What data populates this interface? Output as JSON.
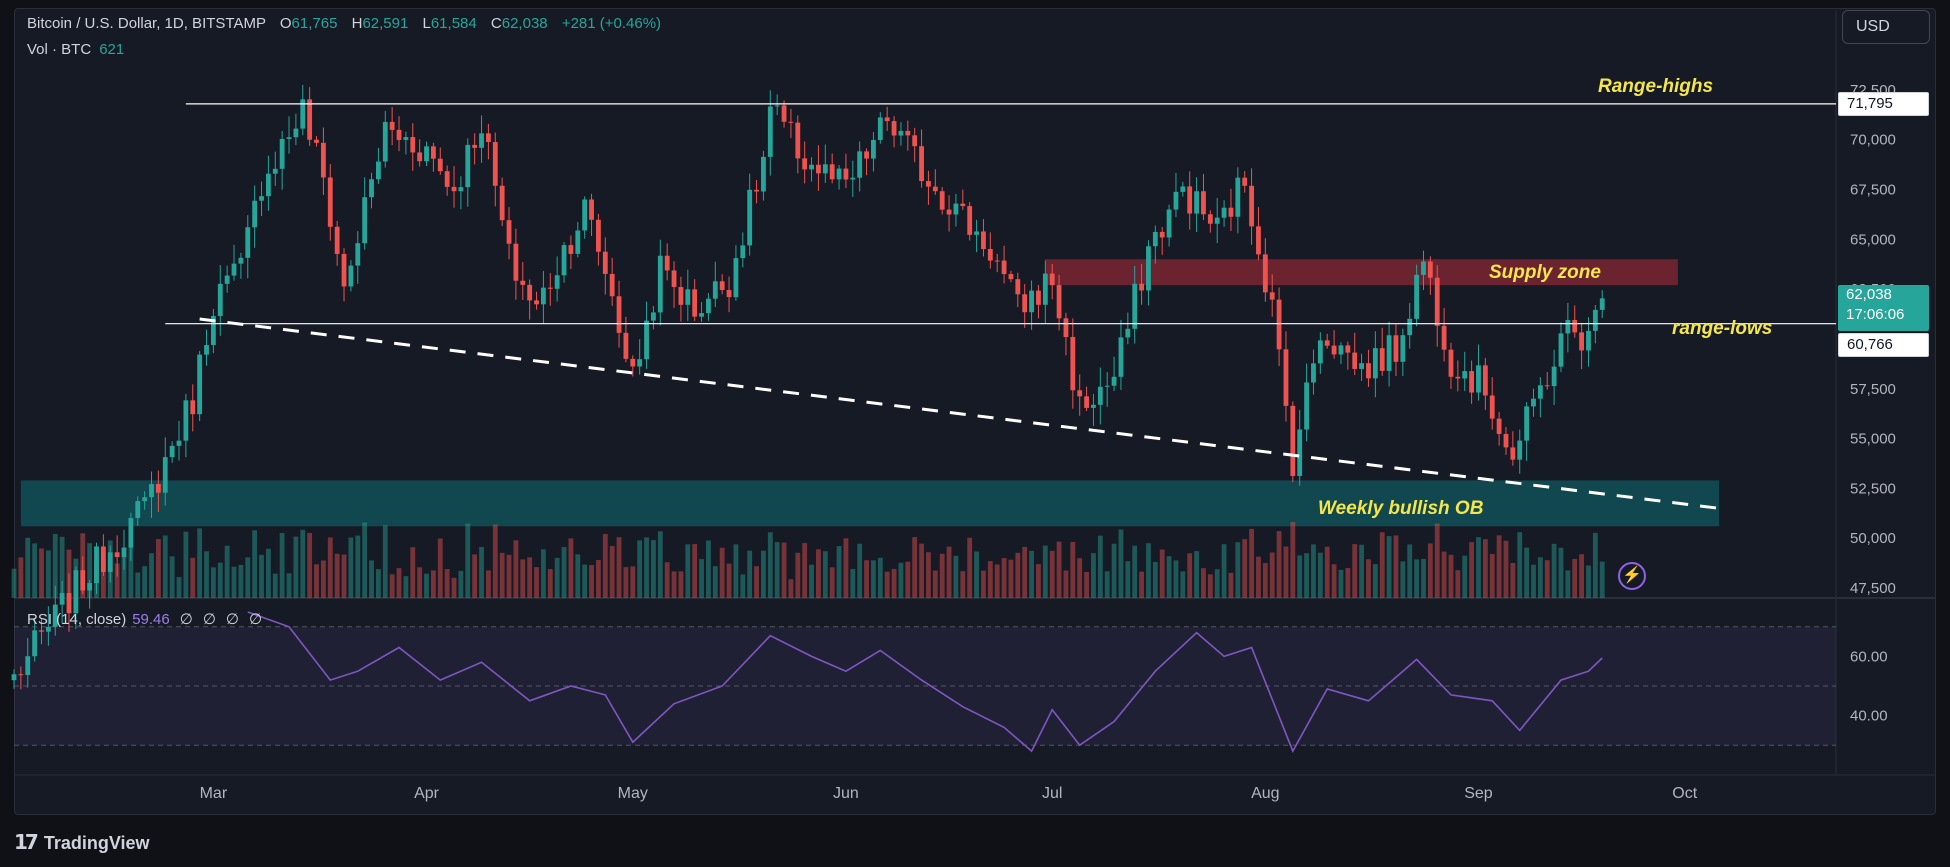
{
  "header": {
    "symbol": "Bitcoin / U.S. Dollar, 1D, BITSTAMP",
    "o_key": "O",
    "o_val": "61,765",
    "h_key": "H",
    "h_val": "62,591",
    "l_key": "L",
    "l_val": "61,584",
    "c_key": "C",
    "c_val": "62,038",
    "change": "+281 (+0.46%)"
  },
  "volume_label": {
    "name": "Vol · BTC",
    "value": "621"
  },
  "rsi_label": {
    "name": "RSI (14, close)",
    "value": "59.46",
    "extras": [
      "∅",
      "∅",
      "∅",
      "∅"
    ]
  },
  "currency_button": "USD",
  "brand": {
    "logo": "17",
    "name": "TradingView"
  },
  "colors": {
    "up": "#26a69a",
    "down": "#ef5350",
    "background": "#161a25",
    "rsi_line": "#7e57c2",
    "annotation": "#f5e64a"
  },
  "price_tags": {
    "range_high": "71,795",
    "current_price": "62,038",
    "countdown": "17:06:06",
    "range_low": "60,766"
  },
  "annotations": {
    "range_highs": "Range-highs",
    "supply_zone": "Supply zone",
    "range_lows": "range-lows",
    "weekly_ob": "Weekly bullish OB"
  },
  "chart_data": {
    "type": "candlestick",
    "symbol": "BTCUSD",
    "exchange": "BITSTAMP",
    "interval": "1D",
    "x_tick_labels": [
      "Mar",
      "Apr",
      "May",
      "Jun",
      "Jul",
      "Aug",
      "Sep",
      "Oct"
    ],
    "x_tick_dates": [
      "2024-03-01",
      "2024-04-01",
      "2024-05-01",
      "2024-06-01",
      "2024-07-01",
      "2024-08-01",
      "2024-09-01",
      "2024-10-01"
    ],
    "x_range": [
      "2024-02-01",
      "2024-10-23"
    ],
    "y_ticks": [
      47500,
      50000,
      52500,
      55000,
      57500,
      60000,
      62500,
      65000,
      67500,
      70000,
      72500
    ],
    "y_tick_labels": [
      "47,500",
      "50,000",
      "52,500",
      "55,000",
      "57,500",
      "60,000",
      "62,500",
      "65,000",
      "67,500",
      "70,000",
      "72,500"
    ],
    "y_range": [
      47000,
      74500
    ],
    "price_path": [
      {
        "date": "2024-02-01",
        "close": 43000
      },
      {
        "date": "2024-02-10",
        "close": 47500
      },
      {
        "date": "2024-02-20",
        "close": 51500
      },
      {
        "date": "2024-02-27",
        "close": 57000
      },
      {
        "date": "2024-03-01",
        "close": 62000
      },
      {
        "date": "2024-03-05",
        "close": 63500
      },
      {
        "date": "2024-03-08",
        "close": 68000
      },
      {
        "date": "2024-03-14",
        "close": 71500
      },
      {
        "date": "2024-03-17",
        "close": 68000
      },
      {
        "date": "2024-03-20",
        "close": 62500
      },
      {
        "date": "2024-03-26",
        "close": 70500
      },
      {
        "date": "2024-04-01",
        "close": 69500
      },
      {
        "date": "2024-04-05",
        "close": 67500
      },
      {
        "date": "2024-04-09",
        "close": 71000
      },
      {
        "date": "2024-04-13",
        "close": 64000
      },
      {
        "date": "2024-04-17",
        "close": 61500
      },
      {
        "date": "2024-04-21",
        "close": 64500
      },
      {
        "date": "2024-04-24",
        "close": 66500
      },
      {
        "date": "2024-04-27",
        "close": 63500
      },
      {
        "date": "2024-05-01",
        "close": 58000
      },
      {
        "date": "2024-05-05",
        "close": 63500
      },
      {
        "date": "2024-05-10",
        "close": 61500
      },
      {
        "date": "2024-05-15",
        "close": 63000
      },
      {
        "date": "2024-05-20",
        "close": 69000
      },
      {
        "date": "2024-05-21",
        "close": 71500
      },
      {
        "date": "2024-05-26",
        "close": 69000
      },
      {
        "date": "2024-06-01",
        "close": 67500
      },
      {
        "date": "2024-06-07",
        "close": 71000
      },
      {
        "date": "2024-06-12",
        "close": 68500
      },
      {
        "date": "2024-06-17",
        "close": 66500
      },
      {
        "date": "2024-06-22",
        "close": 64500
      },
      {
        "date": "2024-06-26",
        "close": 61500
      },
      {
        "date": "2024-07-01",
        "close": 63000
      },
      {
        "date": "2024-07-05",
        "close": 56500
      },
      {
        "date": "2024-07-10",
        "close": 58000
      },
      {
        "date": "2024-07-15",
        "close": 64500
      },
      {
        "date": "2024-07-20",
        "close": 67500
      },
      {
        "date": "2024-07-25",
        "close": 65500
      },
      {
        "date": "2024-07-29",
        "close": 68000
      },
      {
        "date": "2024-08-02",
        "close": 61500
      },
      {
        "date": "2024-08-05",
        "close": 54000
      },
      {
        "date": "2024-08-09",
        "close": 60500
      },
      {
        "date": "2024-08-15",
        "close": 58500
      },
      {
        "date": "2024-08-20",
        "close": 59500
      },
      {
        "date": "2024-08-24",
        "close": 64000
      },
      {
        "date": "2024-08-28",
        "close": 59000
      },
      {
        "date": "2024-09-02",
        "close": 57500
      },
      {
        "date": "2024-09-06",
        "close": 54000
      },
      {
        "date": "2024-09-10",
        "close": 57500
      },
      {
        "date": "2024-09-14",
        "close": 60500
      },
      {
        "date": "2024-09-17",
        "close": 60000
      },
      {
        "date": "2024-09-19",
        "close": 62038
      }
    ],
    "horizontal_lines": [
      {
        "label": "Range-highs",
        "price": 71795,
        "from": "2024-02-26",
        "to": "2024-10-23"
      },
      {
        "label": "range-lows",
        "price": 60766,
        "from": "2024-02-23",
        "to": "2024-10-23"
      }
    ],
    "trendline": {
      "style": "dashed",
      "from": {
        "date": "2024-02-28",
        "price": 61000
      },
      "to": {
        "date": "2024-10-06",
        "price": 51500
      }
    },
    "zones": [
      {
        "label": "Supply zone",
        "from": "2024-06-30",
        "to": "2024-09-30",
        "price_low": 62700,
        "price_high": 64000
      },
      {
        "label": "Weekly bullish OB",
        "from": "2024-02-02",
        "to": "2024-10-06",
        "price_low": 50600,
        "price_high": 52900
      }
    ],
    "rsi": {
      "period": 14,
      "source": "close",
      "current": 59.46,
      "y_range": [
        25,
        75
      ],
      "y_ticks": [
        40,
        60
      ],
      "y_tick_labels": [
        "40.00",
        "60.00"
      ],
      "bands": [
        30,
        50,
        70
      ],
      "path": [
        {
          "date": "2024-03-06",
          "value": 75
        },
        {
          "date": "2024-03-12",
          "value": 70
        },
        {
          "date": "2024-03-18",
          "value": 52
        },
        {
          "date": "2024-03-22",
          "value": 55
        },
        {
          "date": "2024-03-28",
          "value": 63
        },
        {
          "date": "2024-04-03",
          "value": 52
        },
        {
          "date": "2024-04-09",
          "value": 58
        },
        {
          "date": "2024-04-16",
          "value": 45
        },
        {
          "date": "2024-04-22",
          "value": 50
        },
        {
          "date": "2024-04-27",
          "value": 47
        },
        {
          "date": "2024-05-01",
          "value": 31
        },
        {
          "date": "2024-05-07",
          "value": 44
        },
        {
          "date": "2024-05-14",
          "value": 50
        },
        {
          "date": "2024-05-21",
          "value": 67
        },
        {
          "date": "2024-05-27",
          "value": 60
        },
        {
          "date": "2024-06-01",
          "value": 55
        },
        {
          "date": "2024-06-06",
          "value": 62
        },
        {
          "date": "2024-06-12",
          "value": 52
        },
        {
          "date": "2024-06-18",
          "value": 43
        },
        {
          "date": "2024-06-24",
          "value": 36
        },
        {
          "date": "2024-06-28",
          "value": 28
        },
        {
          "date": "2024-07-01",
          "value": 42
        },
        {
          "date": "2024-07-05",
          "value": 30
        },
        {
          "date": "2024-07-10",
          "value": 38
        },
        {
          "date": "2024-07-16",
          "value": 55
        },
        {
          "date": "2024-07-22",
          "value": 68
        },
        {
          "date": "2024-07-26",
          "value": 60
        },
        {
          "date": "2024-07-30",
          "value": 63
        },
        {
          "date": "2024-08-05",
          "value": 28
        },
        {
          "date": "2024-08-10",
          "value": 49
        },
        {
          "date": "2024-08-16",
          "value": 45
        },
        {
          "date": "2024-08-23",
          "value": 59
        },
        {
          "date": "2024-08-28",
          "value": 47
        },
        {
          "date": "2024-09-03",
          "value": 45
        },
        {
          "date": "2024-09-07",
          "value": 35
        },
        {
          "date": "2024-09-13",
          "value": 52
        },
        {
          "date": "2024-09-17",
          "value": 55
        },
        {
          "date": "2024-09-19",
          "value": 59.46
        }
      ]
    }
  }
}
